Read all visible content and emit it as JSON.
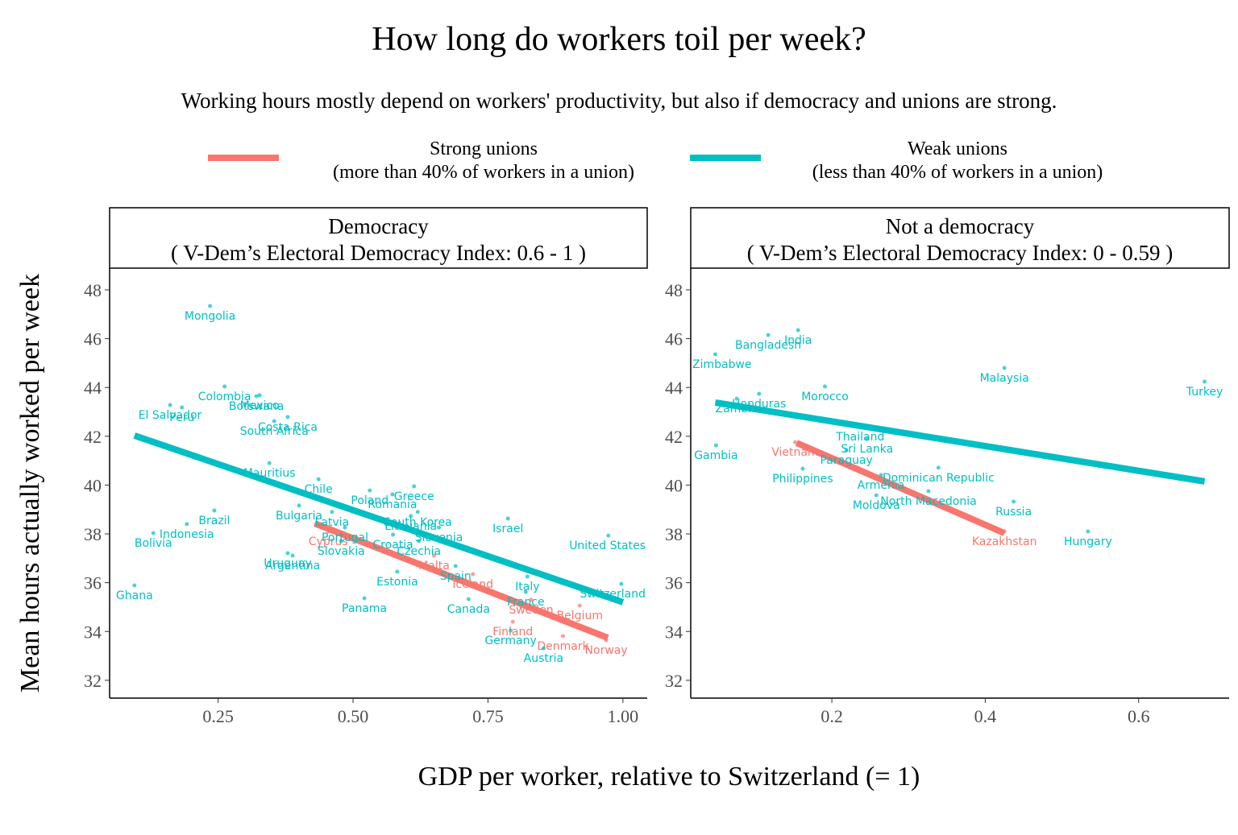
{
  "chart_data": {
    "type": "scatter",
    "title": "How long do workers toil per week?",
    "subtitle": "Working hours mostly depend on workers' productivity, but also if democracy and unions are strong.",
    "xlabel": "GDP per worker, relative to Switzerland (= 1)",
    "ylabel": "Mean hours actually worked per week",
    "series": [
      {
        "name": "Strong unions",
        "description": "(more than 40% of workers in a union)",
        "color": "#F8766D"
      },
      {
        "name": "Weak unions",
        "description": "(less than 40% of workers in a union)",
        "color": "#00BFC4"
      }
    ],
    "panels": [
      {
        "title": "Democracy",
        "subtitle": "( V-Dem’s Electoral Democracy Index: 0.6 - 1 )",
        "xlim": [
          0.049,
          1.045
        ],
        "xticks": [
          0.25,
          {
            "value": 0.5,
            "label": "0.50"
          },
          0.75,
          {
            "value": 1,
            "label": "1.00"
          }
        ],
        "ylim": [
          31.27,
          48.89
        ],
        "yticks": [
          32,
          34,
          36,
          38,
          40,
          42,
          44,
          46,
          48
        ],
        "points": [
          {
            "label": "Mongolia",
            "x": 0.235,
            "y": 47.34,
            "series": 1
          },
          {
            "label": "Colombia",
            "x": 0.262,
            "y": 44.04,
            "series": 1
          },
          {
            "label": "Mexico",
            "x": 0.327,
            "y": 43.68,
            "series": 1
          },
          {
            "label": "El Salvador",
            "x": 0.161,
            "y": 43.28,
            "series": 1
          },
          {
            "label": "Peru",
            "x": 0.183,
            "y": 43.18,
            "series": 1
          },
          {
            "label": "Botswana",
            "x": 0.321,
            "y": 43.64,
            "series": 1
          },
          {
            "label": "South Africa",
            "x": 0.354,
            "y": 42.62,
            "series": 1
          },
          {
            "label": "Costa Rica",
            "x": 0.379,
            "y": 42.79,
            "series": 1
          },
          {
            "label": "Mauritius",
            "x": 0.345,
            "y": 40.9,
            "series": 1
          },
          {
            "label": "Chile",
            "x": 0.436,
            "y": 40.24,
            "series": 1
          },
          {
            "label": "Poland",
            "x": 0.531,
            "y": 39.78,
            "series": 1
          },
          {
            "label": "Greece",
            "x": 0.613,
            "y": 39.95,
            "series": 1
          },
          {
            "label": "South Korea",
            "x": 0.62,
            "y": 38.9,
            "series": 1
          },
          {
            "label": "Romania",
            "x": 0.573,
            "y": 39.62,
            "series": 1
          },
          {
            "label": "Bulgaria",
            "x": 0.4,
            "y": 39.16,
            "series": 1
          },
          {
            "label": "Latvia",
            "x": 0.461,
            "y": 38.9,
            "series": 1
          },
          {
            "label": "Brazil",
            "x": 0.243,
            "y": 38.96,
            "series": 1
          },
          {
            "label": "Lithuania",
            "x": 0.607,
            "y": 38.73,
            "series": 1
          },
          {
            "label": "Slovenia",
            "x": 0.659,
            "y": 38.26,
            "series": 1
          },
          {
            "label": "Israel",
            "x": 0.787,
            "y": 38.63,
            "series": 1
          },
          {
            "label": "Cyprus",
            "x": 0.454,
            "y": 38.1,
            "series": 0
          },
          {
            "label": "Portugal",
            "x": 0.485,
            "y": 38.26,
            "series": 1
          },
          {
            "label": "Indonesia",
            "x": 0.192,
            "y": 38.4,
            "series": 1
          },
          {
            "label": "Bolivia",
            "x": 0.13,
            "y": 38.03,
            "series": 1
          },
          {
            "label": "Croatia",
            "x": 0.574,
            "y": 37.97,
            "series": 1
          },
          {
            "label": "Malta",
            "x": 0.65,
            "y": 37.11,
            "series": 0
          },
          {
            "label": "United States",
            "x": 0.973,
            "y": 37.93,
            "series": 1
          },
          {
            "label": "Uruguay",
            "x": 0.379,
            "y": 37.21,
            "series": 1
          },
          {
            "label": "Slovakia",
            "x": 0.478,
            "y": 37.7,
            "series": 1
          },
          {
            "label": "Argentina",
            "x": 0.388,
            "y": 37.11,
            "series": 1
          },
          {
            "label": "Czechia",
            "x": 0.622,
            "y": 37.7,
            "series": 1
          },
          {
            "label": "Spain",
            "x": 0.69,
            "y": 36.68,
            "series": 1
          },
          {
            "label": "Italy",
            "x": 0.823,
            "y": 36.25,
            "series": 1
          },
          {
            "label": "Iceland",
            "x": 0.722,
            "y": 36.35,
            "series": 0
          },
          {
            "label": "Estonia",
            "x": 0.582,
            "y": 36.45,
            "series": 1
          },
          {
            "label": "Switzerland",
            "x": 0.997,
            "y": 35.95,
            "series": 1
          },
          {
            "label": "Ghana",
            "x": 0.095,
            "y": 35.89,
            "series": 1
          },
          {
            "label": "Canada",
            "x": 0.714,
            "y": 35.33,
            "series": 1
          },
          {
            "label": "Panama",
            "x": 0.521,
            "y": 35.36,
            "series": 1
          },
          {
            "label": "France",
            "x": 0.82,
            "y": 35.62,
            "series": 1
          },
          {
            "label": "Belgium",
            "x": 0.92,
            "y": 35.06,
            "series": 0
          },
          {
            "label": "Finland",
            "x": 0.796,
            "y": 34.4,
            "series": 0
          },
          {
            "label": "Sweden",
            "x": 0.83,
            "y": 35.3,
            "series": 0
          },
          {
            "label": "Denmark",
            "x": 0.889,
            "y": 33.81,
            "series": 0
          },
          {
            "label": "Norway",
            "x": 0.969,
            "y": 33.64,
            "series": 0
          },
          {
            "label": "Germany",
            "x": 0.792,
            "y": 34.04,
            "series": 1
          },
          {
            "label": "Austria",
            "x": 0.853,
            "y": 33.31,
            "series": 1
          }
        ],
        "fits": [
          {
            "series": 1,
            "x": [
              0.095,
              1.0
            ],
            "y": [
              42.03,
              35.2
            ]
          },
          {
            "series": 0,
            "x": [
              0.429,
              0.972
            ],
            "y": [
              38.43,
              33.74
            ]
          }
        ]
      },
      {
        "title": "Not a democracy",
        "subtitle": "( V-Dem’s Electoral Democracy Index: 0 - 0.59 )",
        "xlim": [
          0.016,
          0.718
        ],
        "xticks": [
          0.2,
          0.4,
          0.6
        ],
        "ylim": [
          31.27,
          48.89
        ],
        "yticks": [
          32,
          34,
          36,
          38,
          40,
          42,
          44,
          46,
          48
        ],
        "points": [
          {
            "label": "India",
            "x": 0.156,
            "y": 46.35,
            "series": 1
          },
          {
            "label": "Bangladesh",
            "x": 0.117,
            "y": 46.15,
            "series": 1
          },
          {
            "label": "Zimbabwe",
            "x": 0.048,
            "y": 45.36,
            "series": 1
          },
          {
            "label": "Honduras",
            "x": 0.105,
            "y": 43.74,
            "series": 1
          },
          {
            "label": "Morocco",
            "x": 0.191,
            "y": 44.04,
            "series": 1
          },
          {
            "label": "Malaysia",
            "x": 0.425,
            "y": 44.8,
            "series": 1
          },
          {
            "label": "Turkey",
            "x": 0.686,
            "y": 44.24,
            "series": 1
          },
          {
            "label": "Zambia",
            "x": 0.076,
            "y": 43.54,
            "series": 1
          },
          {
            "label": "Thailand",
            "x": 0.237,
            "y": 42.39,
            "series": 1
          },
          {
            "label": "Sri Lanka",
            "x": 0.246,
            "y": 41.89,
            "series": 1
          },
          {
            "label": "Vietnam",
            "x": 0.152,
            "y": 41.76,
            "series": 0
          },
          {
            "label": "Gambia",
            "x": 0.049,
            "y": 41.63,
            "series": 1
          },
          {
            "label": "Paraguay",
            "x": 0.219,
            "y": 41.43,
            "series": 1
          },
          {
            "label": "Armenia",
            "x": 0.264,
            "y": 40.41,
            "series": 1
          },
          {
            "label": "Dominican Republic",
            "x": 0.339,
            "y": 40.71,
            "series": 1
          },
          {
            "label": "Philippines",
            "x": 0.162,
            "y": 40.67,
            "series": 1
          },
          {
            "label": "Moldova",
            "x": 0.258,
            "y": 39.58,
            "series": 1
          },
          {
            "label": "North Macedonia",
            "x": 0.326,
            "y": 39.75,
            "series": 1
          },
          {
            "label": "Russia",
            "x": 0.437,
            "y": 39.32,
            "series": 1
          },
          {
            "label": "Hungary",
            "x": 0.534,
            "y": 38.1,
            "series": 1
          },
          {
            "label": "Kazakhstan",
            "x": 0.425,
            "y": 38.1,
            "series": 0
          }
        ],
        "fits": [
          {
            "series": 1,
            "x": [
              0.048,
              0.686
            ],
            "y": [
              43.38,
              40.15
            ]
          },
          {
            "series": 0,
            "x": [
              0.154,
              0.425
            ],
            "y": [
              41.73,
              38.03
            ]
          }
        ]
      }
    ]
  }
}
